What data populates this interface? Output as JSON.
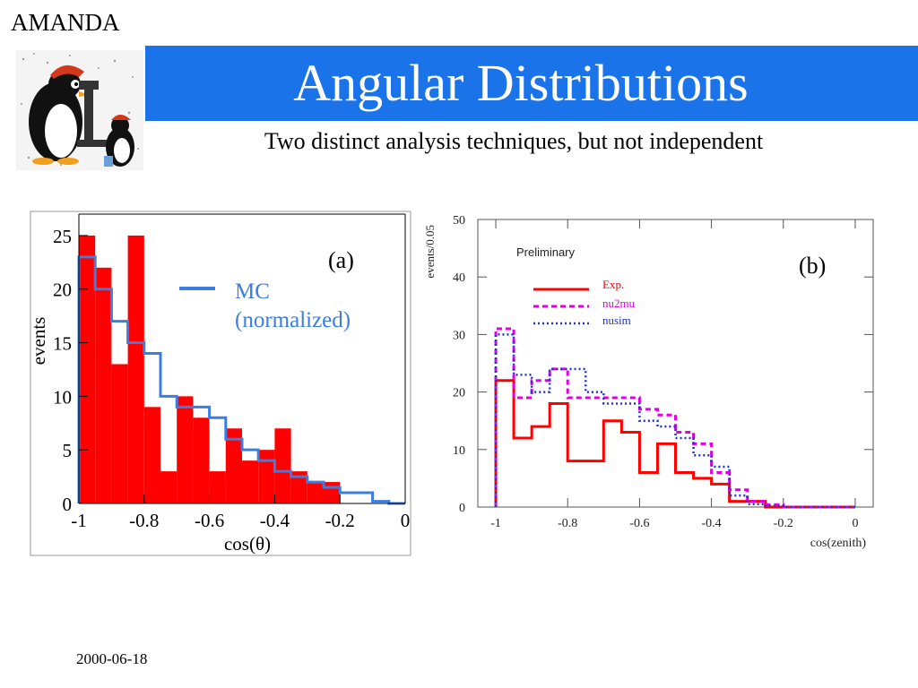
{
  "header": {
    "corner_label": "AMANDA",
    "title": "Angular Distributions",
    "subtitle": "Two distinct analysis techniques, but not independent"
  },
  "footer": {
    "date": "2000-06-18"
  },
  "colors": {
    "title_bar": "#1a73e8",
    "red": "#ff0000",
    "blue": "#3b7de0",
    "magenta": "#e000e0",
    "navy": "#2233cc"
  },
  "icons": {
    "logo": "penguin-with-microscope-icon"
  },
  "panels": {
    "a": {
      "label": "(a)",
      "legend_line1": "MC",
      "legend_line2": "(normalized)"
    },
    "b": {
      "label": "(b)"
    }
  },
  "chart_data": [
    {
      "type": "bar",
      "xlabel": "cos(θ)",
      "ylabel": "events",
      "xlim": [
        -1,
        0
      ],
      "ylim": [
        0,
        27
      ],
      "bin_edges": [
        -1.0,
        -0.95,
        -0.9,
        -0.85,
        -0.8,
        -0.75,
        -0.7,
        -0.65,
        -0.6,
        -0.55,
        -0.5,
        -0.45,
        -0.4,
        -0.35,
        -0.3,
        -0.25,
        -0.2,
        -0.15,
        -0.1,
        -0.05,
        0.0
      ],
      "x_ticks": [
        "-1",
        "-0.8",
        "-0.6",
        "-0.4",
        "-0.2",
        "0"
      ],
      "y_ticks": [
        "0",
        "5",
        "10",
        "15",
        "20",
        "25"
      ],
      "series": [
        {
          "kind": "bar",
          "values": [
            25,
            22,
            13,
            25,
            9,
            3,
            10,
            8,
            3,
            7,
            4,
            5,
            7,
            3,
            2,
            2,
            0,
            0,
            0,
            0
          ]
        },
        {
          "kind": "step",
          "name": "MC (normalized)",
          "values": [
            23,
            20,
            17,
            15,
            14,
            10,
            9,
            9,
            8,
            6,
            5,
            4,
            3,
            2.5,
            2,
            1.5,
            1,
            1,
            0.2,
            0
          ]
        }
      ]
    },
    {
      "type": "line",
      "annotation": "Preliminary",
      "xlabel": "cos(zenith)",
      "ylabel": "events/0.05",
      "xlim": [
        -1.05,
        0.05
      ],
      "ylim": [
        0,
        50
      ],
      "bin_edges": [
        -1.0,
        -0.95,
        -0.9,
        -0.85,
        -0.8,
        -0.75,
        -0.7,
        -0.65,
        -0.6,
        -0.55,
        -0.5,
        -0.45,
        -0.4,
        -0.35,
        -0.3,
        -0.25,
        -0.2,
        -0.15,
        -0.1,
        -0.05,
        0.0
      ],
      "x_ticks": [
        "-1",
        "-0.8",
        "-0.6",
        "-0.4",
        "-0.2",
        "0"
      ],
      "y_ticks": [
        "0",
        "10",
        "20",
        "30",
        "40",
        "50"
      ],
      "series": [
        {
          "name": "Exp.",
          "values": [
            22,
            12,
            14,
            18,
            8,
            8,
            15,
            13,
            6,
            11,
            6,
            5,
            4,
            1,
            1,
            0,
            0,
            0,
            0,
            0
          ]
        },
        {
          "name": "nu2mu",
          "values": [
            31,
            19,
            22,
            24,
            19,
            19,
            19,
            19,
            17,
            16,
            13,
            11,
            6,
            3,
            1,
            0.4,
            0,
            0,
            0,
            0
          ]
        },
        {
          "name": "nusim",
          "values": [
            30,
            23,
            20,
            24,
            24,
            20,
            18,
            18,
            15,
            14,
            12,
            9,
            7,
            2,
            0.5,
            0.2,
            0,
            0,
            0,
            0
          ]
        }
      ]
    }
  ]
}
